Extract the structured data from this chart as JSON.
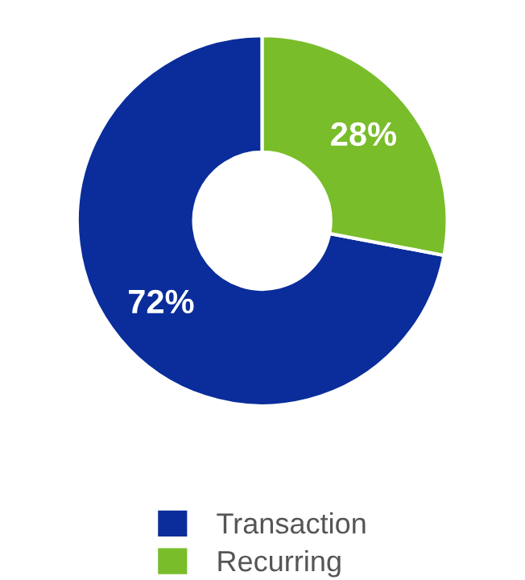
{
  "chart_data": {
    "type": "donut",
    "categories": [
      "Transaction",
      "Recurring"
    ],
    "values": [
      72,
      28
    ],
    "colors": [
      "#0a2d9b",
      "#79bd2a"
    ],
    "value_labels": [
      "72%",
      "28%"
    ],
    "legend": "bottom"
  }
}
